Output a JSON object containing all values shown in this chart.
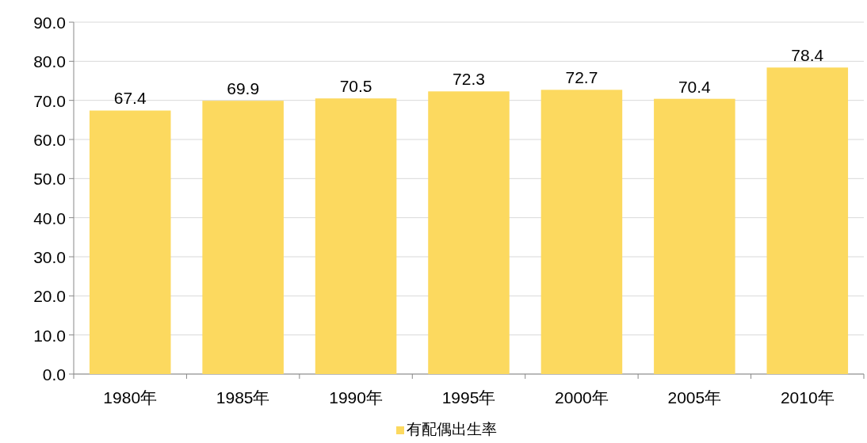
{
  "chart_data": {
    "type": "bar",
    "categories": [
      "1980年",
      "1985年",
      "1990年",
      "1995年",
      "2000年",
      "2005年",
      "2010年"
    ],
    "series": [
      {
        "name": "有配偶出生率",
        "color": "#fcd95f",
        "values": [
          67.4,
          69.9,
          70.5,
          72.3,
          72.7,
          70.4,
          78.4
        ]
      }
    ],
    "ylim": [
      0,
      90
    ],
    "yticks": [
      {
        "value": 0,
        "label": "0.0"
      },
      {
        "value": 10,
        "label": "10.0"
      },
      {
        "value": 20,
        "label": "20.0"
      },
      {
        "value": 30,
        "label": "30.0"
      },
      {
        "value": 40,
        "label": "40.0"
      },
      {
        "value": 50,
        "label": "50.0"
      },
      {
        "value": 60,
        "label": "60.0"
      },
      {
        "value": 70,
        "label": "70.0"
      },
      {
        "value": 80,
        "label": "80.0"
      },
      {
        "value": 90,
        "label": "90.0"
      }
    ],
    "grid": "y",
    "data_labels": true,
    "legend": "bottom"
  }
}
